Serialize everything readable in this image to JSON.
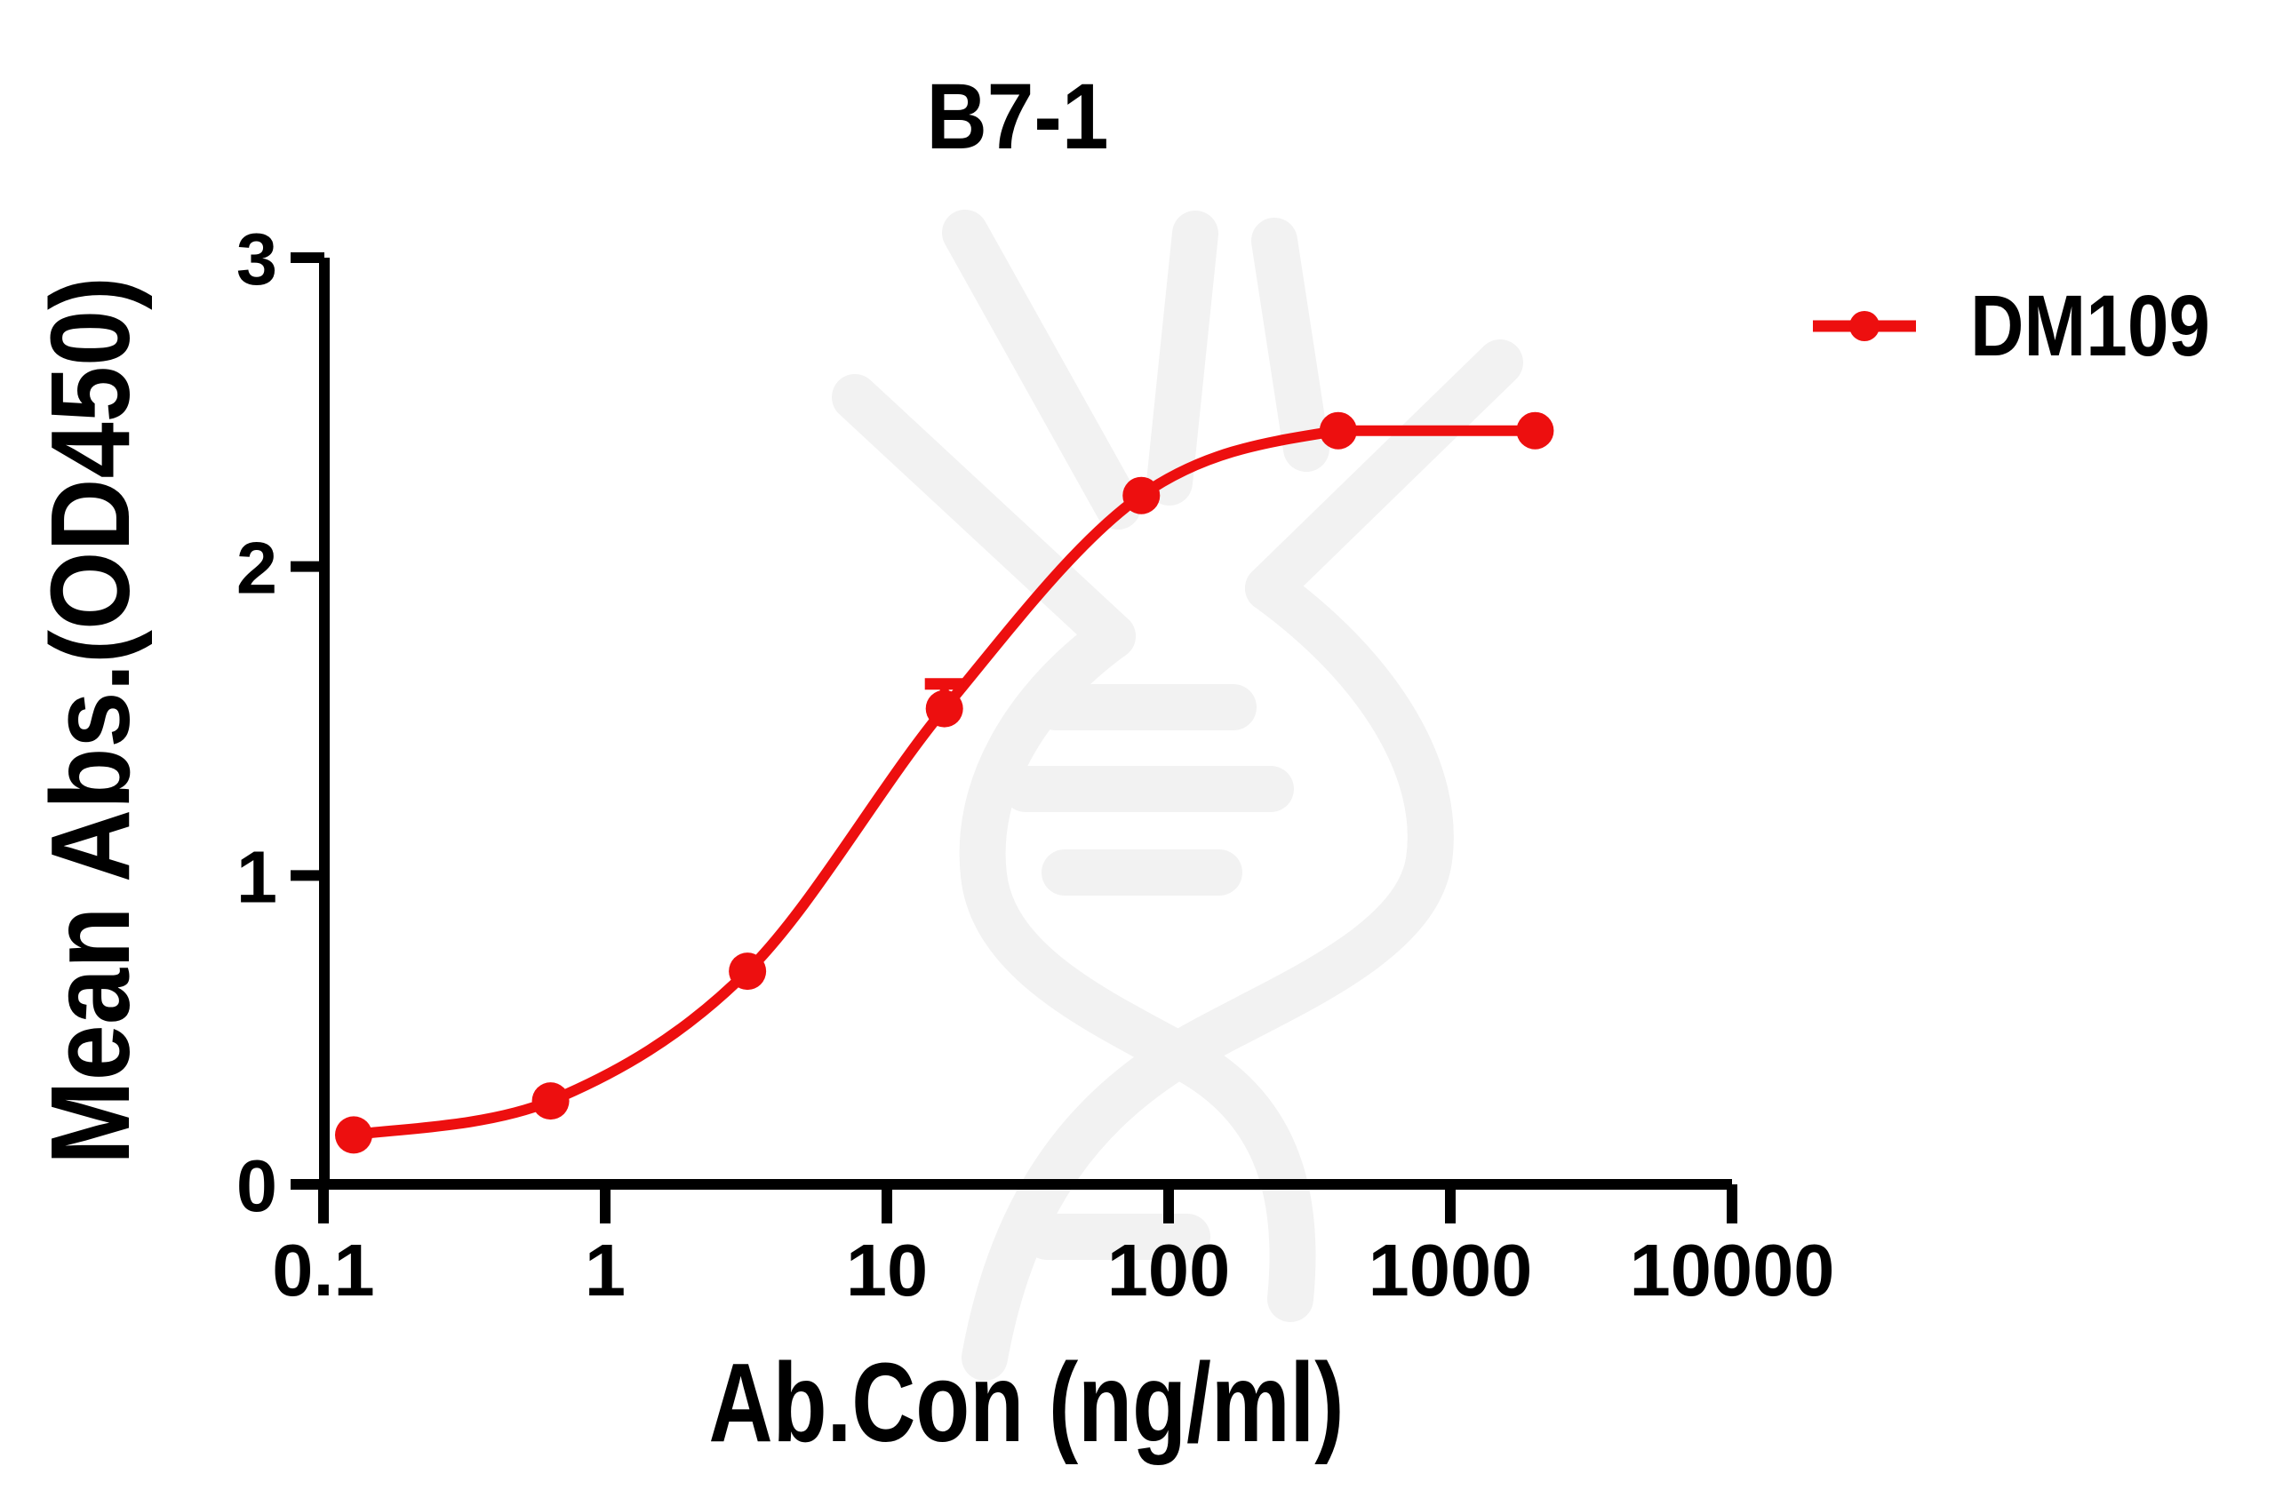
{
  "title": "B7-1",
  "legend": {
    "series_label": "DM109"
  },
  "colors": {
    "series": "#ed0f0f",
    "axis": "#000000",
    "text": "#000000",
    "watermark": "#f2f2f2"
  },
  "chart_data": {
    "type": "line",
    "title": "B7-1",
    "xlabel": "Ab.Con (ng/ml)",
    "ylabel": "Mean Abs.(OD450)",
    "x_scale": "log10",
    "xlim": [
      0.1,
      10000
    ],
    "ylim": [
      0,
      3
    ],
    "x_ticks": [
      0.1,
      1,
      10,
      100,
      1000,
      10000
    ],
    "x_tick_labels": [
      "0.1",
      "1",
      "10",
      "100",
      "1000",
      "10000"
    ],
    "y_ticks": [
      0,
      1,
      2,
      3
    ],
    "y_tick_labels": [
      "0",
      "1",
      "2",
      "3"
    ],
    "grid": false,
    "legend_position": "right-top",
    "series": [
      {
        "name": "DM109",
        "color": "#ed0f0f",
        "marker": "circle",
        "x": [
          0.128,
          0.64,
          3.2,
          16,
          80,
          400,
          2000
        ],
        "y": [
          0.16,
          0.27,
          0.69,
          1.54,
          2.23,
          2.44,
          2.44
        ],
        "error_plus": [
          0,
          0,
          0,
          0.08,
          0,
          0,
          0
        ]
      }
    ]
  }
}
